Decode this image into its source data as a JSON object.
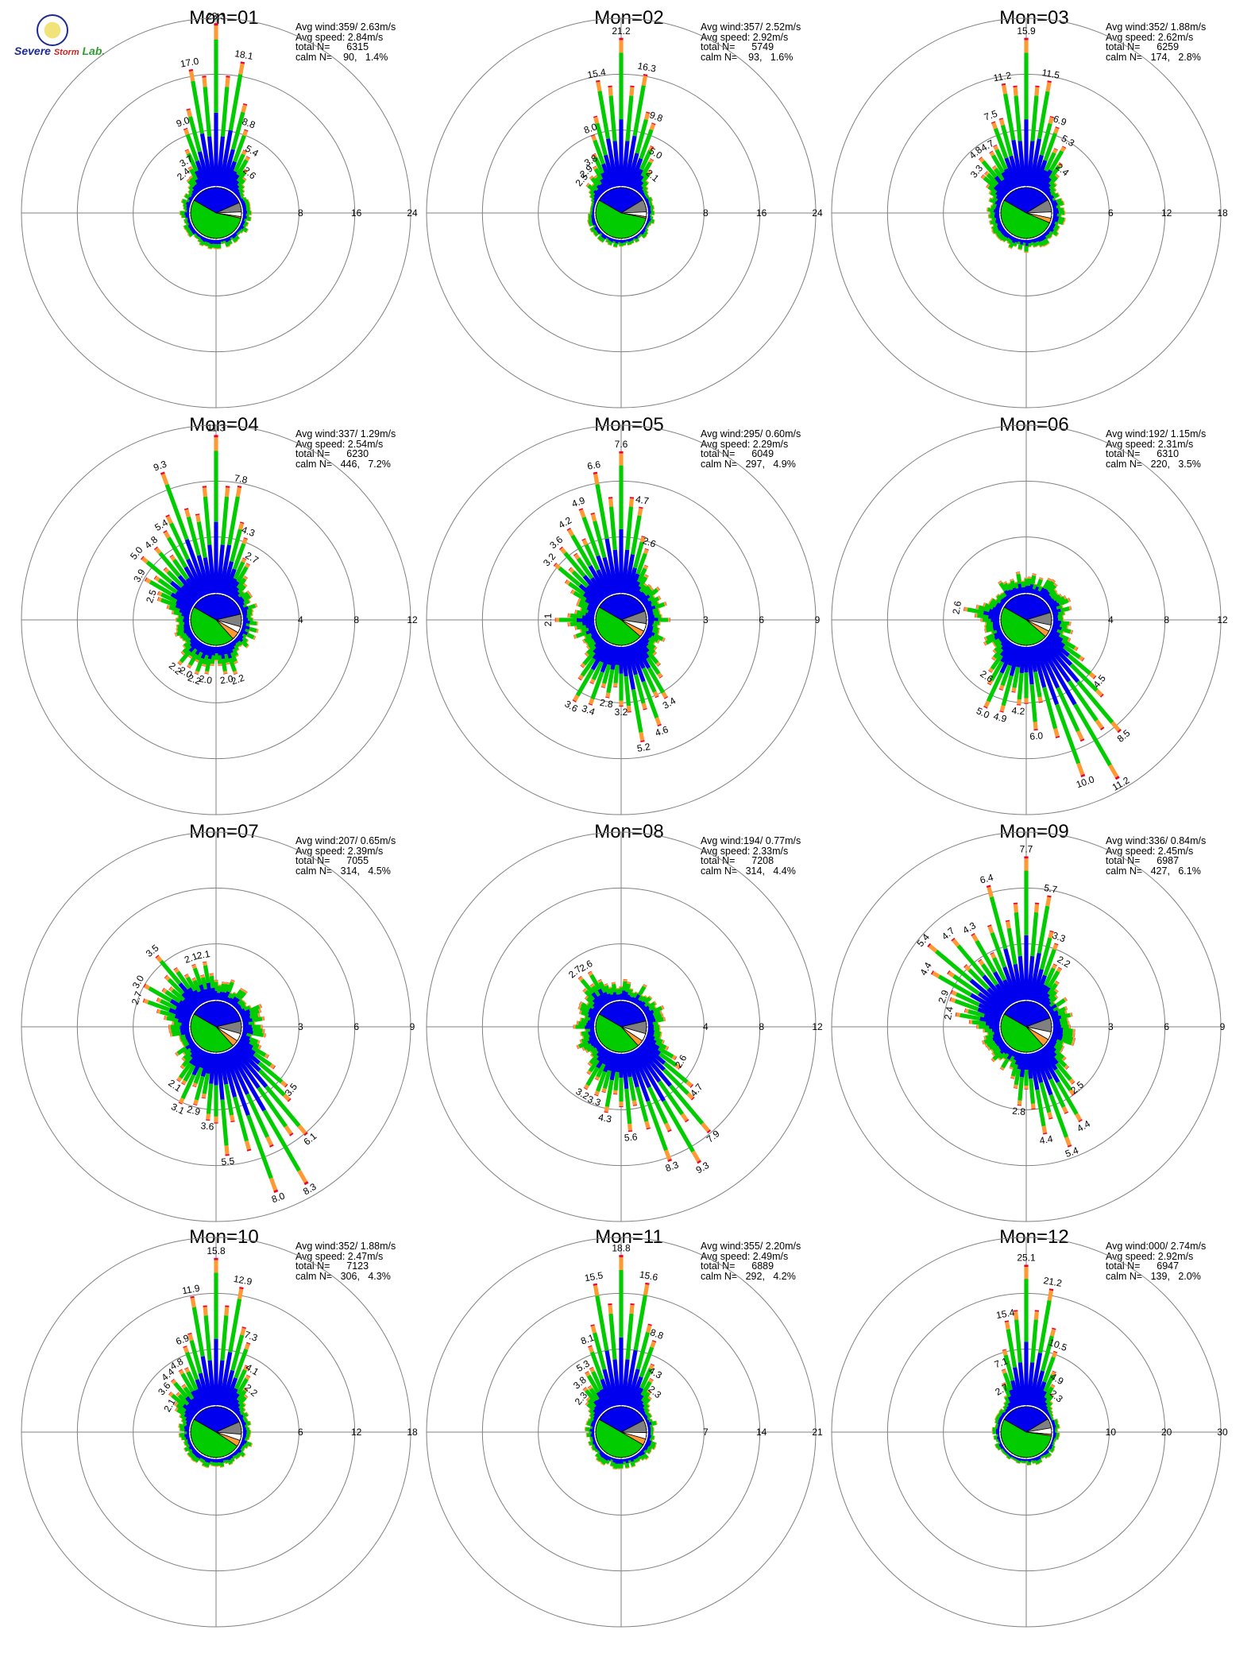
{
  "logo": {
    "word1": "Severe",
    "word2": "Storm",
    "word3": "Lab."
  },
  "colors": {
    "orange": "#ff9933",
    "green": "#00cc00",
    "blue": "#0000ee",
    "red": "#ee0033",
    "gray": "#808080",
    "white": "#ffffff",
    "grid": "#808080"
  },
  "chart_data": [
    {
      "type": "wind-rose",
      "title": "Mon=01",
      "stats": {
        "avg_wind": "Avg wind:359/ 2.63m/s",
        "avg_speed": "Avg speed: 2.84m/s",
        "total": "total N=      6315",
        "calm": "calm N=    90,   1.4%"
      },
      "rings": [
        "8",
        "16",
        "24"
      ],
      "rmax": 24,
      "labeled_spokes": [
        {
          "dir": 0,
          "value": 23.3
        },
        {
          "dir": 350,
          "value": 17.0
        },
        {
          "dir": 10,
          "value": 18.1
        },
        {
          "dir": 340,
          "value": 9.0
        },
        {
          "dir": 20,
          "value": 8.8
        },
        {
          "dir": 330,
          "value": 3.7
        },
        {
          "dir": 30,
          "value": 5.4
        },
        {
          "dir": 320,
          "value": 2.4
        },
        {
          "dir": 40,
          "value": 2.6
        }
      ],
      "pie": {
        "blue": 0.35,
        "gray": 0.06,
        "white": 0.03,
        "orange": 0.01,
        "green": 0.55
      }
    },
    {
      "type": "wind-rose",
      "title": "Mon=02",
      "stats": {
        "avg_wind": "Avg wind:357/ 2.52m/s",
        "avg_speed": "Avg speed: 2.92m/s",
        "total": "total N=      5749",
        "calm": "calm N=    93,   1.6%"
      },
      "rings": [
        "8",
        "16",
        "24"
      ],
      "rmax": 24,
      "labeled_spokes": [
        {
          "dir": 0,
          "value": 21.2
        },
        {
          "dir": 350,
          "value": 15.4
        },
        {
          "dir": 10,
          "value": 16.3
        },
        {
          "dir": 340,
          "value": 8.0
        },
        {
          "dir": 20,
          "value": 9.8
        },
        {
          "dir": 330,
          "value": 3.8
        },
        {
          "dir": 30,
          "value": 5.0
        },
        {
          "dir": 320,
          "value": 2.9
        },
        {
          "dir": 310,
          "value": 2.5
        },
        {
          "dir": 40,
          "value": 2.1
        }
      ],
      "pie": {
        "blue": 0.33,
        "gray": 0.08,
        "white": 0.03,
        "orange": 0.01,
        "green": 0.55
      }
    },
    {
      "type": "wind-rose",
      "title": "Mon=03",
      "stats": {
        "avg_wind": "Avg wind:352/ 1.88m/s",
        "avg_speed": "Avg speed: 2.62m/s",
        "total": "total N=      6259",
        "calm": "calm N=   174,   2.8%"
      },
      "rings": [
        "6",
        "12",
        "18"
      ],
      "rmax": 18,
      "labeled_spokes": [
        {
          "dir": 0,
          "value": 15.9
        },
        {
          "dir": 350,
          "value": 11.2
        },
        {
          "dir": 10,
          "value": 11.5
        },
        {
          "dir": 340,
          "value": 7.5
        },
        {
          "dir": 20,
          "value": 6.9
        },
        {
          "dir": 330,
          "value": 4.7
        },
        {
          "dir": 30,
          "value": 5.3
        },
        {
          "dir": 320,
          "value": 4.8
        },
        {
          "dir": 310,
          "value": 3.3
        },
        {
          "dir": 40,
          "value": 2.4
        }
      ],
      "pie": {
        "blue": 0.33,
        "gray": 0.08,
        "white": 0.04,
        "orange": 0.03,
        "green": 0.52
      }
    },
    {
      "type": "wind-rose",
      "title": "Mon=04",
      "stats": {
        "avg_wind": "Avg wind:337/ 1.29m/s",
        "avg_speed": "Avg speed: 2.54m/s",
        "total": "total N=      6230",
        "calm": "calm N=   446,   7.2%"
      },
      "rings": [
        "4",
        "8",
        "12"
      ],
      "rmax": 12,
      "labeled_spokes": [
        {
          "dir": 0,
          "value": 11.3
        },
        {
          "dir": 340,
          "value": 9.3
        },
        {
          "dir": 10,
          "value": 7.8
        },
        {
          "dir": 330,
          "value": 5.4
        },
        {
          "dir": 320,
          "value": 4.8
        },
        {
          "dir": 310,
          "value": 5.0
        },
        {
          "dir": 300,
          "value": 3.9
        },
        {
          "dir": 290,
          "value": 2.5
        },
        {
          "dir": 20,
          "value": 4.3
        },
        {
          "dir": 30,
          "value": 2.7
        },
        {
          "dir": 210,
          "value": 2.0
        },
        {
          "dir": 200,
          "value": 2.2
        },
        {
          "dir": 190,
          "value": 2.0
        },
        {
          "dir": 220,
          "value": 2.2
        },
        {
          "dir": 170,
          "value": 2.0
        },
        {
          "dir": 160,
          "value": 2.2
        }
      ],
      "pie": {
        "blue": 0.38,
        "gray": 0.08,
        "white": 0.04,
        "orange": 0.05,
        "green": 0.45
      }
    },
    {
      "type": "wind-rose",
      "title": "Mon=05",
      "stats": {
        "avg_wind": "Avg wind:295/ 0.60m/s",
        "avg_speed": "Avg speed: 2.29m/s",
        "total": "total N=      6049",
        "calm": "calm N=   297,   4.9%"
      },
      "rings": [
        "3",
        "6",
        "9"
      ],
      "rmax": 9,
      "labeled_spokes": [
        {
          "dir": 0,
          "value": 7.6
        },
        {
          "dir": 350,
          "value": 6.6
        },
        {
          "dir": 340,
          "value": 4.9
        },
        {
          "dir": 10,
          "value": 4.7
        },
        {
          "dir": 330,
          "value": 4.2
        },
        {
          "dir": 320,
          "value": 3.6
        },
        {
          "dir": 310,
          "value": 3.2
        },
        {
          "dir": 20,
          "value": 2.6
        },
        {
          "dir": 270,
          "value": 2.1
        },
        {
          "dir": 170,
          "value": 5.2
        },
        {
          "dir": 160,
          "value": 4.6
        },
        {
          "dir": 150,
          "value": 3.4
        },
        {
          "dir": 180,
          "value": 3.2
        },
        {
          "dir": 200,
          "value": 3.4
        },
        {
          "dir": 210,
          "value": 3.6
        },
        {
          "dir": 190,
          "value": 2.8
        }
      ],
      "pie": {
        "blue": 0.36,
        "gray": 0.08,
        "white": 0.05,
        "orange": 0.04,
        "green": 0.47
      }
    },
    {
      "type": "wind-rose",
      "title": "Mon=06",
      "stats": {
        "avg_wind": "Avg wind:192/ 1.15m/s",
        "avg_speed": "Avg speed: 2.31m/s",
        "total": "total N=      6310",
        "calm": "calm N=   220,   3.5%"
      },
      "rings": [
        "4",
        "8",
        "12"
      ],
      "rmax": 12,
      "labeled_spokes": [
        {
          "dir": 150,
          "value": 11.2
        },
        {
          "dir": 160,
          "value": 10.0
        },
        {
          "dir": 140,
          "value": 8.5
        },
        {
          "dir": 175,
          "value": 6.0
        },
        {
          "dir": 130,
          "value": 4.5
        },
        {
          "dir": 205,
          "value": 5.0
        },
        {
          "dir": 195,
          "value": 4.9
        },
        {
          "dir": 185,
          "value": 4.2
        },
        {
          "dir": 215,
          "value": 2.6
        },
        {
          "dir": 280,
          "value": 2.6
        }
      ],
      "pie": {
        "blue": 0.37,
        "gray": 0.08,
        "white": 0.04,
        "orange": 0.04,
        "green": 0.47
      }
    },
    {
      "type": "wind-rose",
      "title": "Mon=07",
      "stats": {
        "avg_wind": "Avg wind:207/ 0.65m/s",
        "avg_speed": "Avg speed: 2.39m/s",
        "total": "total N=      7055",
        "calm": "calm N=   314,   4.5%"
      },
      "rings": [
        "3",
        "6",
        "9"
      ],
      "rmax": 9,
      "labeled_spokes": [
        {
          "dir": 150,
          "value": 8.3
        },
        {
          "dir": 160,
          "value": 8.0
        },
        {
          "dir": 140,
          "value": 6.1
        },
        {
          "dir": 175,
          "value": 5.5
        },
        {
          "dir": 130,
          "value": 3.5
        },
        {
          "dir": 185,
          "value": 3.6
        },
        {
          "dir": 195,
          "value": 2.9
        },
        {
          "dir": 205,
          "value": 3.1
        },
        {
          "dir": 215,
          "value": 2.1
        },
        {
          "dir": 320,
          "value": 3.5
        },
        {
          "dir": 340,
          "value": 2.1
        },
        {
          "dir": 350,
          "value": 2.1
        },
        {
          "dir": 300,
          "value": 3.0
        },
        {
          "dir": 290,
          "value": 2.7
        }
      ],
      "pie": {
        "blue": 0.38,
        "gray": 0.08,
        "white": 0.05,
        "orange": 0.04,
        "green": 0.45
      }
    },
    {
      "type": "wind-rose",
      "title": "Mon=08",
      "stats": {
        "avg_wind": "Avg wind:194/ 0.77m/s",
        "avg_speed": "Avg speed: 2.33m/s",
        "total": "total N=      7208",
        "calm": "calm N=   314,   4.4%"
      },
      "rings": [
        "4",
        "8",
        "12"
      ],
      "rmax": 12,
      "labeled_spokes": [
        {
          "dir": 150,
          "value": 9.3
        },
        {
          "dir": 160,
          "value": 8.3
        },
        {
          "dir": 140,
          "value": 7.9
        },
        {
          "dir": 175,
          "value": 5.6
        },
        {
          "dir": 130,
          "value": 4.7
        },
        {
          "dir": 190,
          "value": 4.3
        },
        {
          "dir": 200,
          "value": 3.3
        },
        {
          "dir": 210,
          "value": 3.2
        },
        {
          "dir": 330,
          "value": 2.6
        },
        {
          "dir": 320,
          "value": 2.7
        },
        {
          "dir": 120,
          "value": 2.6
        }
      ],
      "pie": {
        "blue": 0.38,
        "gray": 0.08,
        "white": 0.05,
        "orange": 0.04,
        "green": 0.45
      }
    },
    {
      "type": "wind-rose",
      "title": "Mon=09",
      "stats": {
        "avg_wind": "Avg wind:336/ 0.84m/s",
        "avg_speed": "Avg speed: 2.45m/s",
        "total": "total N=      6987",
        "calm": "calm N=   427,   6.1%"
      },
      "rings": [
        "3",
        "6",
        "9"
      ],
      "rmax": 9,
      "labeled_spokes": [
        {
          "dir": 0,
          "value": 7.7
        },
        {
          "dir": 345,
          "value": 6.4
        },
        {
          "dir": 10,
          "value": 5.7
        },
        {
          "dir": 330,
          "value": 4.3
        },
        {
          "dir": 320,
          "value": 4.7
        },
        {
          "dir": 310,
          "value": 5.4
        },
        {
          "dir": 300,
          "value": 4.4
        },
        {
          "dir": 290,
          "value": 2.9
        },
        {
          "dir": 280,
          "value": 2.4
        },
        {
          "dir": 20,
          "value": 3.3
        },
        {
          "dir": 30,
          "value": 2.2
        },
        {
          "dir": 160,
          "value": 5.4
        },
        {
          "dir": 150,
          "value": 4.4
        },
        {
          "dir": 170,
          "value": 4.4
        },
        {
          "dir": 185,
          "value": 2.8
        },
        {
          "dir": 140,
          "value": 2.5
        }
      ],
      "pie": {
        "blue": 0.36,
        "gray": 0.09,
        "white": 0.05,
        "orange": 0.05,
        "green": 0.45
      }
    },
    {
      "type": "wind-rose",
      "title": "Mon=10",
      "stats": {
        "avg_wind": "Avg wind:352/ 1.88m/s",
        "avg_speed": "Avg speed: 2.47m/s",
        "total": "total N=      7123",
        "calm": "calm N=   306,   4.3%"
      },
      "rings": [
        "6",
        "12",
        "18"
      ],
      "rmax": 18,
      "labeled_spokes": [
        {
          "dir": 0,
          "value": 15.8
        },
        {
          "dir": 350,
          "value": 11.9
        },
        {
          "dir": 10,
          "value": 12.9
        },
        {
          "dir": 340,
          "value": 6.9
        },
        {
          "dir": 20,
          "value": 7.3
        },
        {
          "dir": 330,
          "value": 4.8
        },
        {
          "dir": 30,
          "value": 4.1
        },
        {
          "dir": 320,
          "value": 4.4
        },
        {
          "dir": 310,
          "value": 3.6
        },
        {
          "dir": 300,
          "value": 2.1
        },
        {
          "dir": 40,
          "value": 2.2
        }
      ],
      "pie": {
        "blue": 0.35,
        "gray": 0.08,
        "white": 0.04,
        "orange": 0.04,
        "green": 0.49
      }
    },
    {
      "type": "wind-rose",
      "title": "Mon=11",
      "stats": {
        "avg_wind": "Avg wind:355/ 2.20m/s",
        "avg_speed": "Avg speed: 2.49m/s",
        "total": "total N=      6889",
        "calm": "calm N=   292,   4.2%"
      },
      "rings": [
        "7",
        "14",
        "21"
      ],
      "rmax": 21,
      "labeled_spokes": [
        {
          "dir": 0,
          "value": 18.8
        },
        {
          "dir": 350,
          "value": 15.5
        },
        {
          "dir": 10,
          "value": 15.6
        },
        {
          "dir": 340,
          "value": 8.1
        },
        {
          "dir": 20,
          "value": 8.8
        },
        {
          "dir": 330,
          "value": 5.3
        },
        {
          "dir": 30,
          "value": 4.3
        },
        {
          "dir": 320,
          "value": 3.8
        },
        {
          "dir": 310,
          "value": 2.3
        },
        {
          "dir": 40,
          "value": 2.3
        }
      ],
      "pie": {
        "blue": 0.34,
        "gray": 0.08,
        "white": 0.04,
        "orange": 0.04,
        "green": 0.5
      }
    },
    {
      "type": "wind-rose",
      "title": "Mon=12",
      "stats": {
        "avg_wind": "Avg wind:000/ 2.74m/s",
        "avg_speed": "Avg speed: 2.92m/s",
        "total": "total N=      6947",
        "calm": "calm N=   139,   2.0%"
      },
      "rings": [
        "10",
        "20",
        "30"
      ],
      "rmax": 30,
      "labeled_spokes": [
        {
          "dir": 0,
          "value": 25.1
        },
        {
          "dir": 350,
          "value": 15.4
        },
        {
          "dir": 10,
          "value": 21.2
        },
        {
          "dir": 340,
          "value": 7.1
        },
        {
          "dir": 20,
          "value": 10.5
        },
        {
          "dir": 330,
          "value": 2.7
        },
        {
          "dir": 30,
          "value": 4.9
        },
        {
          "dir": 40,
          "value": 2.3
        }
      ],
      "pie": {
        "blue": 0.33,
        "gray": 0.06,
        "white": 0.04,
        "orange": 0.01,
        "green": 0.56
      }
    }
  ]
}
